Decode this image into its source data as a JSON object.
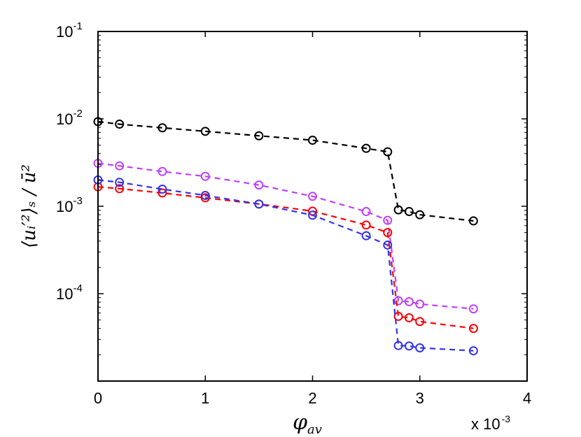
{
  "chart_data": {
    "type": "line",
    "title": "",
    "xlabel": "φ",
    "xlabel_sub": "av",
    "ylabel": "⟨uᵢ′²⟩ₛ / ū²",
    "x_multiplier_label": "x 10",
    "x_multiplier_exp": "-3",
    "xlim": [
      0,
      0.004
    ],
    "ylim": [
      1e-05,
      0.1
    ],
    "yscale": "log",
    "grid": false,
    "legend": "none",
    "x_ticks": [
      {
        "value": 0,
        "label": "0"
      },
      {
        "value": 0.001,
        "label": "1"
      },
      {
        "value": 0.002,
        "label": "2"
      },
      {
        "value": 0.003,
        "label": "3"
      },
      {
        "value": 0.004,
        "label": "4"
      }
    ],
    "y_ticks": [
      {
        "value": 0.0001,
        "base": "10",
        "exp": "-4"
      },
      {
        "value": 0.001,
        "base": "10",
        "exp": "-3"
      },
      {
        "value": 0.01,
        "base": "10",
        "exp": "-2"
      },
      {
        "value": 0.1,
        "base": "10",
        "exp": "-1"
      }
    ],
    "series": [
      {
        "color": "#000000",
        "x": [
          0,
          0.0002,
          0.0006,
          0.001,
          0.0015,
          0.002,
          0.0025,
          0.0027,
          0.0028,
          0.0029,
          0.003,
          0.0035
        ],
        "y": [
          0.0093,
          0.0087,
          0.0079,
          0.0072,
          0.0064,
          0.0057,
          0.0046,
          0.0042,
          0.00091,
          0.00087,
          0.0008,
          0.00068
        ]
      },
      {
        "color": "#bf40ff",
        "x": [
          0,
          0.0002,
          0.0006,
          0.001,
          0.0015,
          0.002,
          0.0025,
          0.0027,
          0.0028,
          0.0029,
          0.003,
          0.0035
        ],
        "y": [
          0.0031,
          0.0029,
          0.0025,
          0.0022,
          0.00175,
          0.0013,
          0.00087,
          0.00069,
          8.3e-05,
          8.1e-05,
          7.6e-05,
          6.7e-05
        ]
      },
      {
        "color": "#ff0000",
        "x": [
          0,
          0.0002,
          0.0006,
          0.001,
          0.0015,
          0.002,
          0.0025,
          0.0027,
          0.0028,
          0.0029,
          0.003,
          0.0035
        ],
        "y": [
          0.00167,
          0.00159,
          0.00142,
          0.00125,
          0.00106,
          0.00088,
          0.00061,
          0.0005,
          5.5e-05,
          5.3e-05,
          4.8e-05,
          4e-05
        ]
      },
      {
        "color": "#3333ee",
        "x": [
          0,
          0.0002,
          0.0006,
          0.001,
          0.0015,
          0.002,
          0.0025,
          0.0027,
          0.0028,
          0.0029,
          0.003,
          0.0035
        ],
        "y": [
          0.002,
          0.00188,
          0.00157,
          0.00133,
          0.00106,
          0.00079,
          0.00046,
          0.00036,
          2.55e-05,
          2.52e-05,
          2.4e-05,
          2.22e-05
        ]
      }
    ]
  }
}
